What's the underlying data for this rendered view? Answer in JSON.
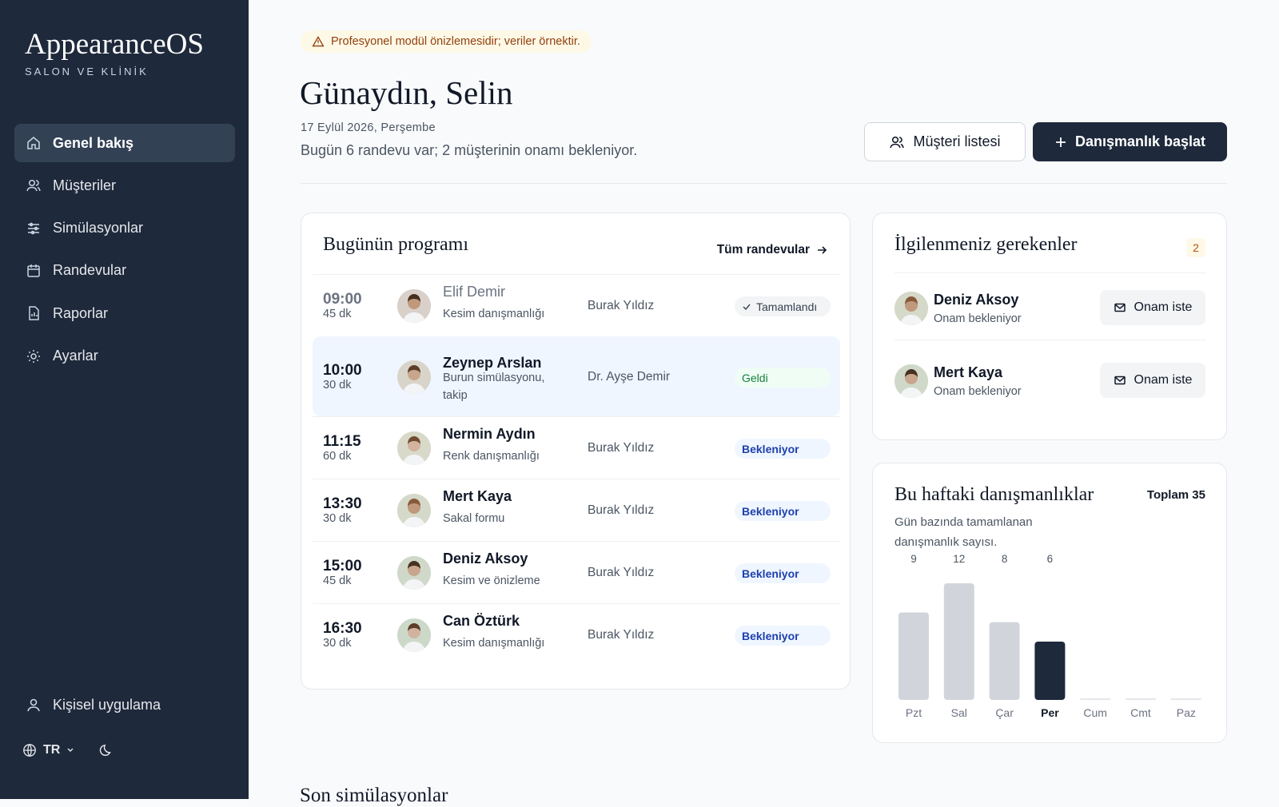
{
  "sidebar": {
    "brand": "AppearanceOS",
    "tagline": "SALON VE KLİNİK",
    "nav": [
      "Genel bakış",
      "Müşteriler",
      "Simülasyonlar",
      "Randevular",
      "Raporlar",
      "Ayarlar"
    ],
    "active": 0,
    "footer": {
      "personal": "Kişisel uygulama",
      "language": "TR"
    }
  },
  "banner": "Profesyonel modül önizlemesidir; veriler örnektir.",
  "header": {
    "greeting": "Günaydın, Selin",
    "date": "17 Eylül 2026, Perşembe",
    "summary": "Bugün 6 randevu var; 2 müşterinin onamı bekleniyor.",
    "buttons": [
      "Müşteri listesi",
      "Danışmanlık başlat"
    ]
  },
  "schedule": {
    "title": "Bugünün programı",
    "link": "Tüm randevular",
    "rows": [
      {
        "time": "09:00",
        "duration": "45 dk",
        "name": "Elif Demir",
        "service": "Kesim danışmanlığı",
        "staff": "Burak Yıldız",
        "status": "Tamamlandı",
        "state": "done"
      },
      {
        "time": "10:00",
        "duration": "30 dk",
        "name": "Zeynep Arslan",
        "service": "Burun simülasyonu, takip",
        "staff": "Dr. Ayşe Demir",
        "status": "Geldi",
        "state": "arrived"
      },
      {
        "time": "11:15",
        "duration": "60 dk",
        "name": "Nermin Aydın",
        "service": "Renk danışmanlığı",
        "staff": "Burak Yıldız",
        "status": "Bekleniyor",
        "state": "waiting"
      },
      {
        "time": "13:30",
        "duration": "30 dk",
        "name": "Mert Kaya",
        "service": "Sakal formu",
        "staff": "Burak Yıldız",
        "status": "Bekleniyor",
        "state": "waiting"
      },
      {
        "time": "15:00",
        "duration": "45 dk",
        "name": "Deniz Aksoy",
        "service": "Kesim ve önizleme",
        "staff": "Burak Yıldız",
        "status": "Bekleniyor",
        "state": "waiting"
      },
      {
        "time": "16:30",
        "duration": "30 dk",
        "name": "Can Öztürk",
        "service": "Kesim danışmanlığı",
        "staff": "Burak Yıldız",
        "status": "Bekleniyor",
        "state": "waiting"
      }
    ]
  },
  "attention": {
    "title": "İlgilenmeniz gerekenler",
    "count": "2",
    "items": [
      {
        "name": "Deniz Aksoy",
        "note": "Onam bekleniyor",
        "action": "Onam iste"
      },
      {
        "name": "Mert Kaya",
        "note": "Onam bekleniyor",
        "action": "Onam iste"
      }
    ]
  },
  "chart_data": {
    "type": "bar",
    "title": "Bu haftaki danışmanlıklar",
    "subtitle": "Gün bazında tamamlanan danışmanlık sayısı.",
    "total_label": "Toplam 35",
    "categories": [
      "Pzt",
      "Sal",
      "Çar",
      "Per",
      "Cum",
      "Cmt",
      "Paz"
    ],
    "values": [
      9,
      12,
      8,
      6,
      null,
      null,
      null
    ],
    "color": "#d1d5db",
    "highlight": 3,
    "highlight_color": "#1e293b"
  },
  "recent": {
    "title": "Son simülasyonlar"
  }
}
